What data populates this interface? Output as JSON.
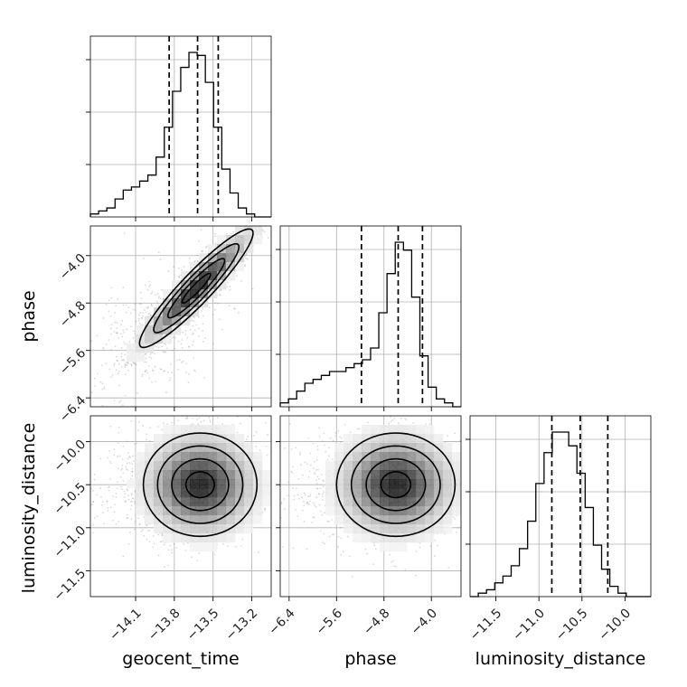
{
  "chart_data": {
    "type": "corner",
    "parameters": [
      "geocent_time",
      "phase",
      "luminosity_distance"
    ],
    "axes": {
      "geocent_time": {
        "lim": [
          -14.45,
          -13.05
        ],
        "ticks": [
          -14.1,
          -13.8,
          -13.5,
          -13.2
        ],
        "tick_labels": [
          "−14.1",
          "−13.8",
          "−13.5",
          "−13.2"
        ]
      },
      "phase": {
        "lim": [
          -6.55,
          -3.5
        ],
        "ticks": [
          -6.4,
          -5.6,
          -4.8,
          -4.0
        ],
        "tick_labels": [
          "−6.4",
          "−5.6",
          "−4.8",
          "−4.0"
        ]
      },
      "luminosity_distance": {
        "lim": [
          -11.8,
          -9.7
        ],
        "ticks": [
          -11.5,
          -11.0,
          -10.5,
          -10.0
        ],
        "tick_labels": [
          "−11.5",
          "−11.0",
          "−10.5",
          "−10.0"
        ]
      }
    },
    "histograms": [
      {
        "param": "geocent_time",
        "bin_edges_start": -14.45,
        "bin_width": 0.0636,
        "counts": [
          1,
          2,
          3,
          6,
          9,
          10,
          12,
          14,
          20,
          30,
          42,
          50,
          55,
          54,
          45,
          30,
          16,
          8,
          3,
          1,
          0,
          0
        ],
        "quantiles": [
          -13.84,
          -13.62,
          -13.46
        ]
      },
      {
        "param": "phase",
        "bin_edges_start": -6.55,
        "bin_width": 0.1386,
        "counts": [
          1,
          2,
          4,
          6,
          7,
          8,
          9,
          9,
          10,
          11,
          12,
          15,
          24,
          34,
          42,
          40,
          28,
          13,
          5,
          2,
          1,
          0
        ],
        "quantiles": [
          -5.18,
          -4.56,
          -4.15
        ]
      },
      {
        "param": "luminosity_distance",
        "bin_edges_start": -11.8,
        "bin_width": 0.0955,
        "counts": [
          0,
          1,
          2,
          4,
          6,
          9,
          14,
          22,
          33,
          42,
          48,
          48,
          44,
          36,
          26,
          15,
          8,
          3,
          1,
          0,
          0,
          0
        ],
        "quantiles": [
          -10.85,
          -10.52,
          -10.2
        ]
      }
    ],
    "joint": [
      {
        "x": "geocent_time",
        "y": "phase",
        "mean": [
          -13.63,
          -4.55
        ],
        "std": [
          0.22,
          0.5
        ],
        "correlation": 0.93
      },
      {
        "x": "geocent_time",
        "y": "luminosity_distance",
        "mean": [
          -13.6,
          -10.5
        ],
        "std": [
          0.22,
          0.3
        ],
        "correlation": 0.0
      },
      {
        "x": "phase",
        "y": "luminosity_distance",
        "mean": [
          -4.6,
          -10.5
        ],
        "std": [
          0.5,
          0.3
        ],
        "correlation": 0.0
      }
    ],
    "grid": true
  }
}
